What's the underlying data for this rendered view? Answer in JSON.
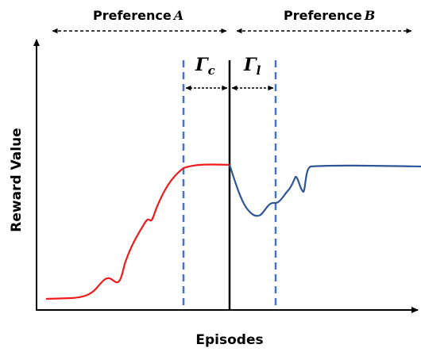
{
  "labels": {
    "preference_a_prefix": "Preference",
    "preference_a_letter": "A",
    "preference_b_prefix": "Preference",
    "preference_b_letter": "B",
    "gamma_c_symbol": "Γ",
    "gamma_c_sub": "c",
    "gamma_l_symbol": "Γ",
    "gamma_l_sub": "l",
    "y_axis": "Reward Value",
    "x_axis": "Episodes"
  },
  "colors": {
    "preference_a_curve": "#ee1c1c",
    "preference_b_curve": "#2e5596",
    "window_lines": "#4472c4",
    "axes": "#000000"
  }
}
